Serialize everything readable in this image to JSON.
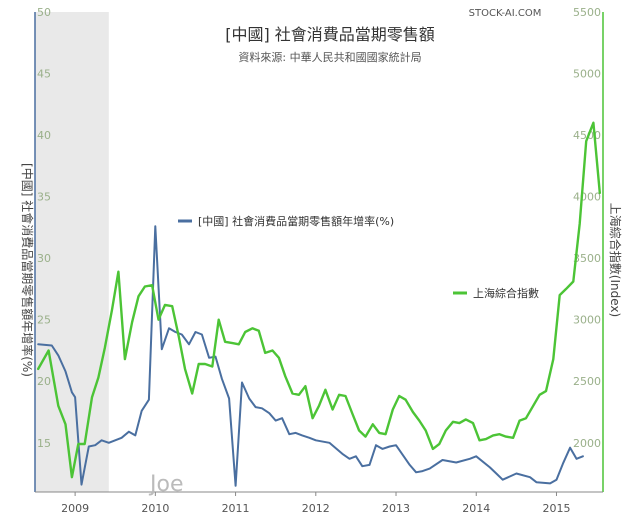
{
  "chart_data": {
    "type": "line",
    "title": "[中國] 社會消費品當期零售額",
    "subtitle": "資料來源: 中華人民共和國國家統計局",
    "source_label": "STOCK-AI.COM",
    "watermark": "Joe",
    "ylabel_left": "[中國] 社會消費品當期零售額年增率(%)",
    "ylabel_right": "上海綜合指數(Index)",
    "ylim_left": [
      11,
      50
    ],
    "ylim_right": [
      1600,
      5500
    ],
    "yticks_left": [
      15,
      20,
      25,
      30,
      35,
      40,
      45,
      50
    ],
    "yticks_right": [
      2000,
      2500,
      3000,
      3500,
      4000,
      4500,
      5000,
      5500
    ],
    "xlim": [
      2008.5,
      2015.58
    ],
    "xticks": [
      "2009",
      "2010",
      "2011",
      "2012",
      "2013",
      "2014",
      "2015"
    ],
    "shaded_region": [
      2008.5,
      2009.42
    ],
    "grid": false,
    "series": [
      {
        "name": "[中國] 社會消費品當期零售額年增率(%)",
        "axis": "left",
        "color": "#4a6fa0",
        "x": [
          2008.54,
          2008.71,
          2008.79,
          2008.88,
          2008.96,
          2009.0,
          2009.08,
          2009.17,
          2009.25,
          2009.33,
          2009.42,
          2009.5,
          2009.58,
          2009.67,
          2009.75,
          2009.83,
          2009.92,
          2010.0,
          2010.08,
          2010.17,
          2010.25,
          2010.33,
          2010.42,
          2010.5,
          2010.58,
          2010.67,
          2010.75,
          2010.83,
          2010.92,
          2011.0,
          2011.08,
          2011.17,
          2011.25,
          2011.33,
          2011.42,
          2011.5,
          2011.58,
          2011.67,
          2011.75,
          2011.83,
          2011.92,
          2012.0,
          2012.17,
          2012.33,
          2012.42,
          2012.5,
          2012.58,
          2012.67,
          2012.75,
          2012.83,
          2012.92,
          2013.0,
          2013.17,
          2013.25,
          2013.33,
          2013.42,
          2013.58,
          2013.75,
          2013.92,
          2014.0,
          2014.17,
          2014.25,
          2014.33,
          2014.5,
          2014.67,
          2014.75,
          2014.92,
          2015.0,
          2015.08,
          2015.17,
          2015.25,
          2015.33
        ],
        "values": [
          23.0,
          22.9,
          22.1,
          20.8,
          19.1,
          18.7,
          11.6,
          14.7,
          14.8,
          15.2,
          15.0,
          15.2,
          15.4,
          15.9,
          15.6,
          17.6,
          18.5,
          32.6,
          22.6,
          24.3,
          24.0,
          23.8,
          23.0,
          24.0,
          23.8,
          21.9,
          22.0,
          20.2,
          18.6,
          11.5,
          19.9,
          18.6,
          17.9,
          17.8,
          17.4,
          16.8,
          17.0,
          15.7,
          15.8,
          15.6,
          15.4,
          15.2,
          15.0,
          14.1,
          13.7,
          13.9,
          13.1,
          13.2,
          14.8,
          14.5,
          14.7,
          14.8,
          13.2,
          12.6,
          12.7,
          12.9,
          13.6,
          13.4,
          13.7,
          13.9,
          13.0,
          12.5,
          12.0,
          12.5,
          12.2,
          11.8,
          11.7,
          12.0,
          13.3,
          14.6,
          13.7,
          13.9
        ]
      },
      {
        "name": "上海綜合指數",
        "axis": "right",
        "color": "#4cc436",
        "x": [
          2008.54,
          2008.67,
          2008.79,
          2008.88,
          2008.96,
          2009.04,
          2009.12,
          2009.21,
          2009.29,
          2009.37,
          2009.46,
          2009.54,
          2009.62,
          2009.71,
          2009.79,
          2009.87,
          2009.96,
          2010.04,
          2010.12,
          2010.21,
          2010.29,
          2010.37,
          2010.46,
          2010.54,
          2010.62,
          2010.71,
          2010.79,
          2010.87,
          2010.96,
          2011.04,
          2011.12,
          2011.21,
          2011.29,
          2011.37,
          2011.46,
          2011.54,
          2011.62,
          2011.71,
          2011.79,
          2011.87,
          2011.96,
          2012.04,
          2012.12,
          2012.21,
          2012.29,
          2012.37,
          2012.46,
          2012.54,
          2012.62,
          2012.71,
          2012.79,
          2012.87,
          2012.96,
          2013.04,
          2013.12,
          2013.21,
          2013.29,
          2013.37,
          2013.46,
          2013.54,
          2013.62,
          2013.71,
          2013.79,
          2013.87,
          2013.96,
          2014.04,
          2014.12,
          2014.21,
          2014.29,
          2014.37,
          2014.46,
          2014.54,
          2014.62,
          2014.71,
          2014.79,
          2014.87,
          2014.96,
          2015.04,
          2015.12,
          2015.21,
          2015.29,
          2015.37,
          2015.46,
          2015.54
        ],
        "values": [
          2600,
          2750,
          2300,
          2150,
          1720,
          1990,
          1990,
          2370,
          2530,
          2770,
          3080,
          3390,
          2680,
          2980,
          3190,
          3270,
          3280,
          3000,
          3120,
          3110,
          2870,
          2600,
          2400,
          2640,
          2640,
          2620,
          3000,
          2820,
          2810,
          2800,
          2900,
          2930,
          2910,
          2730,
          2750,
          2690,
          2540,
          2400,
          2390,
          2460,
          2200,
          2300,
          2430,
          2270,
          2390,
          2380,
          2230,
          2100,
          2050,
          2150,
          2080,
          2070,
          2270,
          2380,
          2350,
          2250,
          2180,
          2100,
          1950,
          1990,
          2100,
          2170,
          2160,
          2190,
          2160,
          2020,
          2030,
          2060,
          2070,
          2050,
          2040,
          2180,
          2200,
          2300,
          2390,
          2420,
          2680,
          3200,
          3250,
          3310,
          3780,
          4450,
          4600,
          4030
        ]
      }
    ],
    "legend": [
      {
        "label": "[中國] 社會消費品當期零售額年增率(%)",
        "color": "#4a6fa0",
        "placement": "middle-left"
      },
      {
        "label": "上海綜合指數",
        "color": "#4cc436",
        "placement": "middle-right"
      }
    ],
    "colors": {
      "left_axis": "#4a6fa0",
      "right_axis": "#4cc436",
      "shade": "#e9e9e9",
      "axis_text": "#9ab08a"
    }
  }
}
